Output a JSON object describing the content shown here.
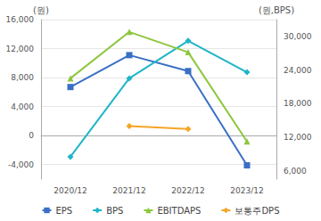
{
  "chart_data": {
    "type": "line",
    "ylabel": "(원)",
    "y2label": "(원,BPS)",
    "categories": [
      "2020/12",
      "2021/12",
      "2022/12",
      "2023/12"
    ],
    "series": [
      {
        "name": "EPS",
        "color": "#3a6fc4",
        "marker": "square",
        "values": [
          6700,
          11100,
          8900,
          -4100
        ]
      },
      {
        "name": "BPS",
        "color": "#1fb5c9",
        "marker": "diamond",
        "axis": "y2",
        "values": [
          8500,
          22500,
          29200,
          23600
        ]
      },
      {
        "name": "EBITDAPS",
        "color": "#8dc63f",
        "marker": "triangle",
        "values": [
          7900,
          14300,
          11500,
          -800
        ]
      },
      {
        "name": "보통주DPS",
        "color": "#f5a623",
        "marker": "diamond",
        "values": [
          null,
          1300,
          900,
          null
        ]
      }
    ],
    "ylim": [
      -6000,
      16000
    ],
    "yticks": [
      {
        "value": -4000,
        "label": "-4,000"
      },
      0,
      {
        "value": 4000,
        "label": "4,000"
      },
      {
        "value": 8000,
        "label": "8,000"
      },
      {
        "value": 12000,
        "label": "12,000"
      },
      {
        "value": 16000,
        "label": "16,000"
      }
    ],
    "y2lim": [
      4500,
      33000
    ],
    "y2ticks": [
      {
        "value": 6000,
        "label": "6,000"
      },
      {
        "value": 12000,
        "label": "12,000"
      },
      {
        "value": 18000,
        "label": "18,000"
      },
      {
        "value": 24000,
        "label": "24,000"
      },
      {
        "value": 30000,
        "label": "30,000"
      }
    ],
    "grid": true,
    "legend": "bottom"
  }
}
